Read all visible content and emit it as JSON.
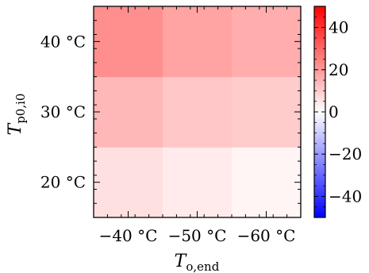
{
  "chart_data": {
    "type": "heatmap",
    "title": "",
    "xlabel": {
      "main": "T",
      "sub": "o,end"
    },
    "ylabel": {
      "main": "T",
      "sub": "p0,i0"
    },
    "x_categories": [
      "−40 °C",
      "−50 °C",
      "−60 °C"
    ],
    "y_categories": [
      "20 °C",
      "30 °C",
      "40 °C"
    ],
    "values": [
      [
        6,
        4,
        2
      ],
      [
        14,
        11,
        10
      ],
      [
        22,
        18,
        16
      ]
    ],
    "colorbar": {
      "range": [
        -50,
        50
      ],
      "ticks": [
        -40,
        -20,
        0,
        20,
        40
      ],
      "tick_labels": [
        "−40",
        "−20",
        "0",
        "20",
        "40"
      ],
      "colormap": "bwr",
      "low_color": "#0000ff",
      "mid_color": "#ffffff",
      "high_color": "#ff0000"
    },
    "grid": false,
    "legend": "none"
  }
}
